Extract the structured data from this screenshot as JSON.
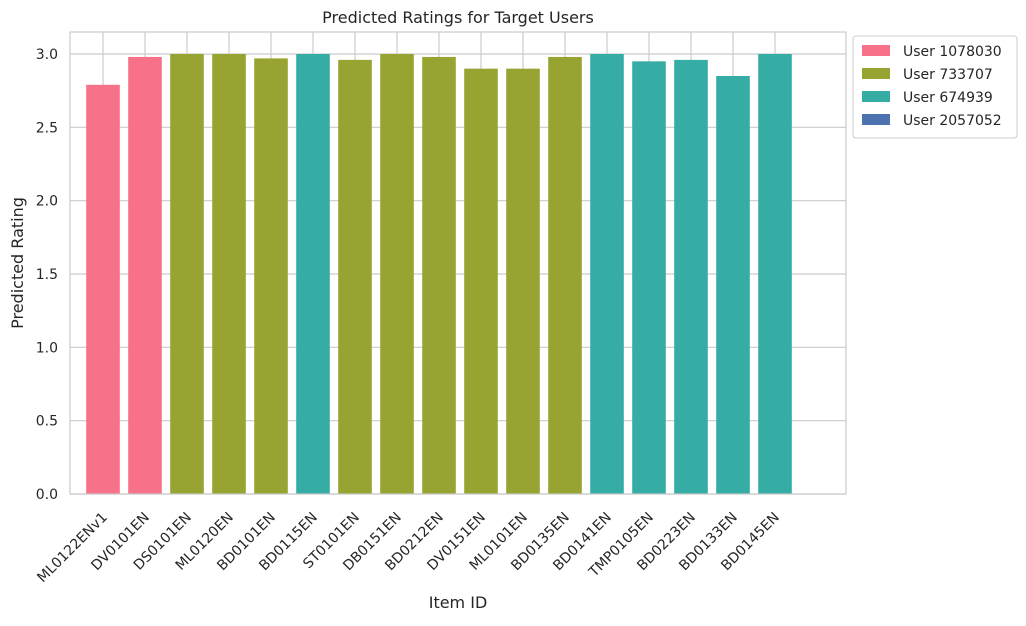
{
  "chart_data": {
    "type": "bar",
    "title": "Predicted Ratings for Target Users",
    "xlabel": "Item ID",
    "ylabel": "Predicted Rating",
    "ylim": [
      0,
      3.15
    ],
    "yticks": [
      0.0,
      0.5,
      1.0,
      1.5,
      2.0,
      2.5,
      3.0
    ],
    "ytick_labels": [
      "0.0",
      "0.5",
      "1.0",
      "1.5",
      "2.0",
      "2.5",
      "3.0"
    ],
    "grid": true,
    "legend_position": "outside-top-right",
    "categories": [
      "ML0122ENv1",
      "DV0101EN",
      "DS0101EN",
      "ML0120EN",
      "BD0101EN",
      "BD0115EN",
      "ST0101EN",
      "DB0151EN",
      "BD0212EN",
      "DV0151EN",
      "ML0101EN",
      "BD0135EN",
      "BD0141EN",
      "TMP0105EN",
      "BD0223EN",
      "BD0133EN",
      "BD0145EN"
    ],
    "values": [
      2.79,
      2.98,
      3.0,
      3.0,
      2.97,
      3.0,
      2.96,
      3.0,
      2.98,
      2.9,
      2.9,
      2.98,
      3.0,
      2.95,
      2.96,
      2.85,
      3.0
    ],
    "bar_series": [
      0,
      0,
      1,
      1,
      1,
      2,
      1,
      1,
      1,
      1,
      1,
      1,
      2,
      2,
      2,
      2,
      2
    ],
    "series": [
      {
        "name": "User 1078030",
        "color": "#f77189"
      },
      {
        "name": "User 733707",
        "color": "#97a431"
      },
      {
        "name": "User 674939",
        "color": "#36ada4"
      },
      {
        "name": "User 2057052",
        "color": "#4c72b0"
      }
    ]
  }
}
